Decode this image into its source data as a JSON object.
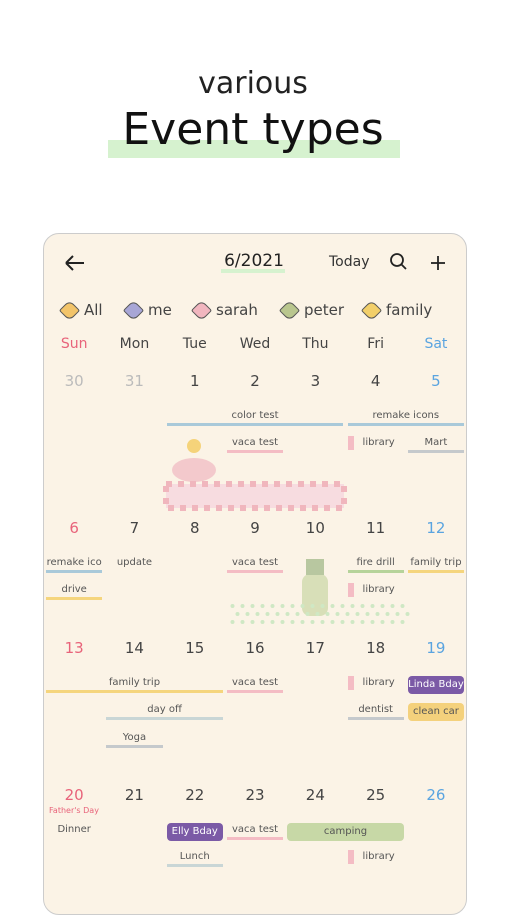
{
  "header": {
    "subtitle": "various",
    "title": "Event types"
  },
  "toolbar": {
    "month": "6/2021",
    "today": "Today"
  },
  "tags": [
    "All",
    "me",
    "sarah",
    "peter",
    "family"
  ],
  "weekdays": [
    "Sun",
    "Mon",
    "Tue",
    "Wed",
    "Thu",
    "Fri",
    "Sat"
  ],
  "weeks": [
    {
      "days": [
        30,
        31,
        1,
        2,
        3,
        4,
        5
      ],
      "notes": [],
      "events": [
        "color test",
        "remake icons",
        "vaca test",
        "library",
        "Mart"
      ]
    },
    {
      "days": [
        6,
        7,
        8,
        9,
        10,
        11,
        12
      ],
      "notes": [],
      "events": [
        "remake ico",
        "update",
        "vaca test",
        "fire drill",
        "family trip",
        "drive",
        "library"
      ]
    },
    {
      "days": [
        13,
        14,
        15,
        16,
        17,
        18,
        19
      ],
      "notes": [],
      "events": [
        "family trip",
        "vaca test",
        "library",
        "Linda Bday",
        "day off",
        "dentist",
        "clean car",
        "Yoga"
      ]
    },
    {
      "days": [
        20,
        21,
        22,
        23,
        24,
        25,
        26
      ],
      "notes": [
        "Father's Day"
      ],
      "events": [
        "Dinner",
        "Elly Bday",
        "vaca test",
        "camping",
        "Lunch",
        "library"
      ]
    }
  ]
}
